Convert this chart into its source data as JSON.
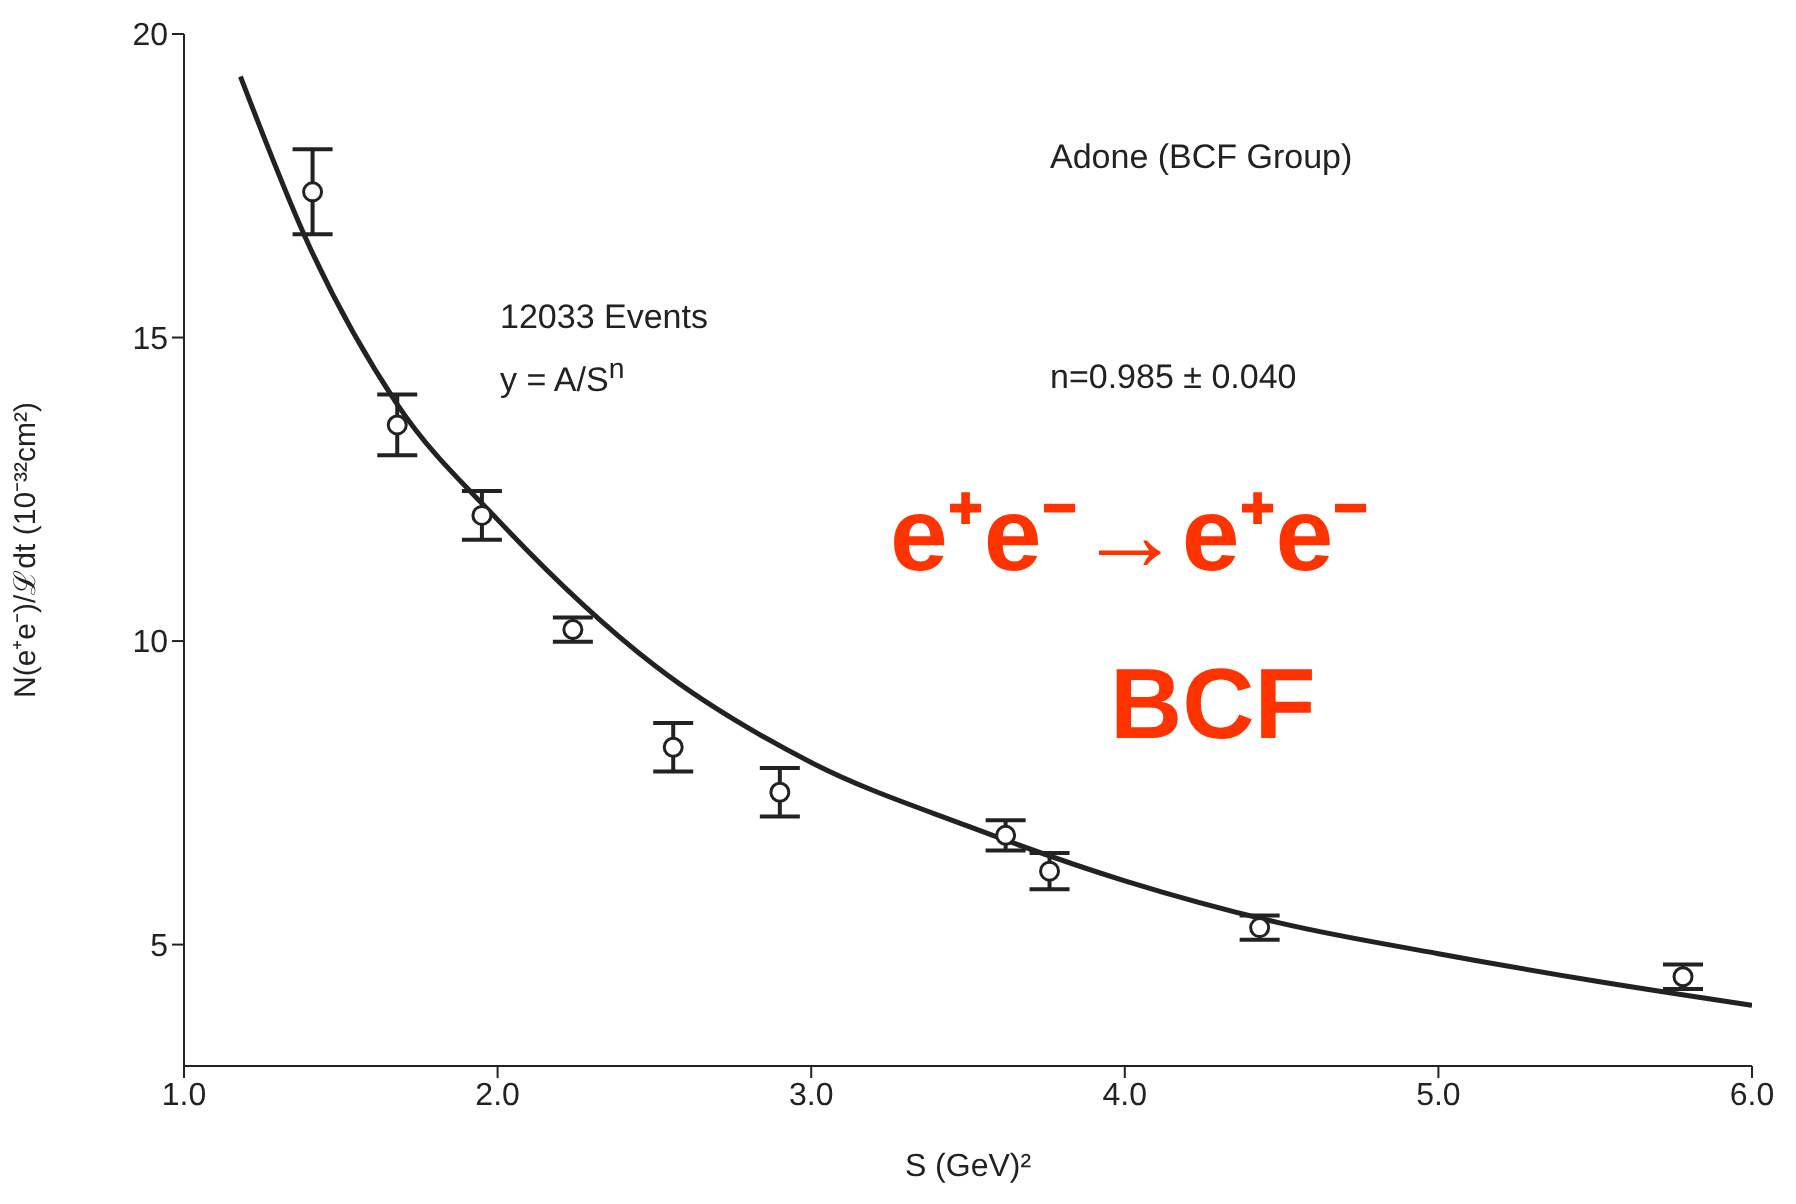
{
  "chart_data": {
    "type": "scatter",
    "xlabel": "S (GeV)²",
    "ylabel": "N(e⁺e⁻)/ℒdt (10⁻³²cm²)",
    "xlim": [
      1,
      6
    ],
    "xticks": [
      {
        "value": 1,
        "label": "1.0"
      },
      {
        "value": 2,
        "label": "2.0"
      },
      {
        "value": 3,
        "label": "3.0"
      },
      {
        "value": 4,
        "label": "4.0"
      },
      {
        "value": 5,
        "label": "5.0"
      },
      {
        "value": 6,
        "label": "6.0"
      }
    ],
    "ylim": [
      3,
      20
    ],
    "yticks": [
      5,
      10,
      15,
      20
    ],
    "series": [
      {
        "marker": "circle",
        "color": "#222222",
        "x": [
          1.41,
          1.68,
          1.95,
          2.24,
          2.56,
          2.9,
          3.62,
          3.76,
          4.43,
          5.78
        ],
        "values": [
          17.4,
          13.56,
          12.07,
          10.19,
          8.25,
          7.51,
          6.8,
          6.21,
          5.28,
          4.47
        ],
        "errors": [
          0.7,
          0.5,
          0.4,
          0.2,
          0.4,
          0.4,
          0.25,
          0.3,
          0.2,
          0.2
        ]
      },
      {
        "type": "line",
        "color": "#222222",
        "x": [
          1.18,
          1.4,
          1.68,
          2.0,
          2.5,
          3.0,
          3.5,
          4.0,
          4.5,
          5.0,
          5.5,
          6.0
        ],
        "values": [
          19.3,
          16.5,
          13.9,
          12.0,
          9.6,
          8.0,
          6.95,
          6.05,
          5.35,
          4.85,
          4.4,
          4.0
        ]
      }
    ],
    "annotations": [
      "Adone (BCF Group)",
      "12033 Events",
      "y = A/S$^{n}$",
      "n=0.985 ± 0.040",
      "e⁺e⁻→e⁺e⁻",
      "BCF"
    ]
  }
}
